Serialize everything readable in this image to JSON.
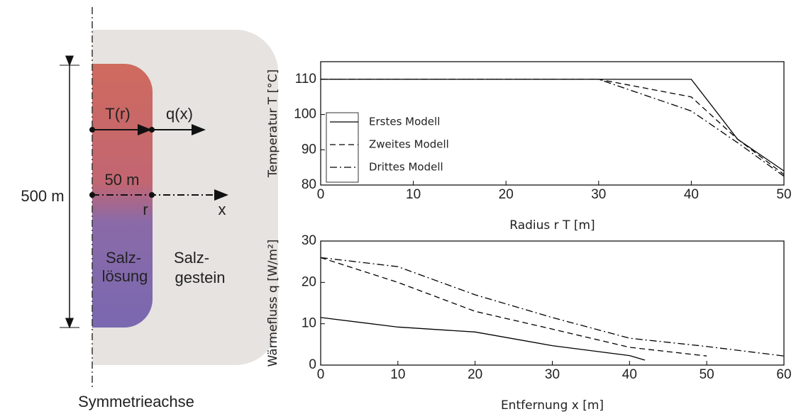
{
  "diagram": {
    "height_label": "500 m",
    "temp_label": "T(r)",
    "flux_label": "q(x)",
    "width_label": "50 m",
    "r_label": "r",
    "x_label": "x",
    "brine_label": [
      "Salz-",
      "lösung"
    ],
    "rock_label": [
      "Salz-",
      "gestein"
    ],
    "axis_label": "Symmetrieachse"
  },
  "chart_data": [
    {
      "type": "line",
      "xlabel": "Radius r T [m]",
      "ylabel": "Temperatur T [°C]",
      "x": [
        0,
        30,
        40,
        45,
        50
      ],
      "series": [
        {
          "name": "Erstes Modell",
          "color": "#000000",
          "style": "solid",
          "values": [
            110,
            110,
            110,
            93,
            84
          ]
        },
        {
          "name": "Zweites Modell",
          "color": "#000000",
          "style": "dashed",
          "values": [
            110,
            110,
            105,
            93,
            83
          ]
        },
        {
          "name": "Drittes Modell",
          "color": "#000000",
          "style": "dashdot",
          "values": [
            110,
            110,
            101,
            92,
            82.5
          ]
        }
      ],
      "xlim": [
        0,
        50
      ],
      "xticks": [
        0,
        10,
        20,
        30,
        40,
        50
      ],
      "ylim": [
        80,
        115
      ],
      "yticks": [
        80,
        90,
        100,
        110
      ],
      "legend": "lower left"
    },
    {
      "type": "line",
      "xlabel": "Entfernung x [m]",
      "ylabel": "Wärmefluss q [W/m²]",
      "series": [
        {
          "name": "Erstes Modell",
          "color": "#000000",
          "style": "solid",
          "x": [
            0,
            10,
            20,
            30,
            40,
            42
          ],
          "values": [
            11.5,
            9.2,
            8,
            4.7,
            2.3,
            1.2
          ]
        },
        {
          "name": "Zweites Modell",
          "color": "#000000",
          "style": "dashed",
          "x": [
            0,
            10,
            20,
            30,
            40,
            50
          ],
          "values": [
            26,
            20,
            13,
            8.7,
            4.3,
            2.2
          ]
        },
        {
          "name": "Drittes Modell",
          "color": "#000000",
          "style": "dashdot",
          "x": [
            0,
            10,
            20,
            30,
            40,
            50,
            60
          ],
          "values": [
            26,
            23.8,
            17,
            11.5,
            6.5,
            4.5,
            2.2
          ]
        }
      ],
      "xlim": [
        0,
        60
      ],
      "xticks": [
        0,
        10,
        20,
        30,
        40,
        50,
        60
      ],
      "ylim": [
        0,
        30
      ],
      "yticks": [
        0,
        10,
        20,
        30
      ]
    }
  ]
}
